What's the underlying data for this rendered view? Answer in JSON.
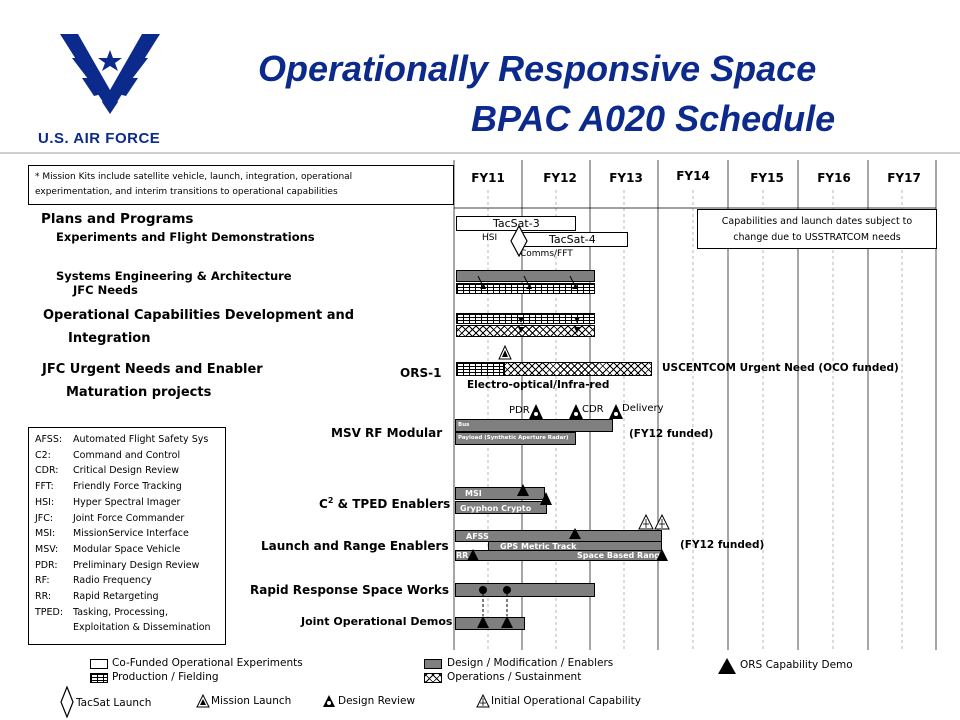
{
  "header": {
    "title_line1": "Operationally Responsive Space",
    "title_line2": "BPAC A020 Schedule",
    "logo_text": "U.S. AIR FORCE"
  },
  "note": {
    "line1": "* Mission Kits include satellite vehicle, launch, integration, operational",
    "line2": "experimentation, and interim transitions to operational capabilities"
  },
  "fiscal_years": [
    "FY11",
    "FY12",
    "FY13",
    "FY14",
    "FY15",
    "FY16",
    "FY17"
  ],
  "cap_note": {
    "line1": "Capabilities and launch dates subject to",
    "line2": "change due to USSTRATCOM needs"
  },
  "sections": {
    "plans": "Plans and Programs",
    "experiments": "Experiments and Flight Demonstrations",
    "sys_eng": "Systems Engineering & Architecture",
    "jfc_needs": "JFC Needs",
    "ocd1": "Operational Capabilities Development and",
    "ocd2": "Integration",
    "urgent1": "JFC Urgent Needs and Enabler",
    "urgent2": "Maturation projects"
  },
  "rows": {
    "ors1": "ORS-1",
    "msv": "MSV RF Modular",
    "c2_main": "C",
    "c2_sup": "2",
    "c2_rest": " & TPED Enablers",
    "launch": "Launch and Range Enablers",
    "rrsw": "Rapid Response Space Works",
    "jod": "Joint Operational Demos"
  },
  "bar_labels": {
    "tacsat3": "TacSat-3",
    "hsi": "HSI",
    "tacsat4": "TacSat-4",
    "comms": "Comms/FFT",
    "eo_ir": "Electro-optical/Infra-red",
    "uscentcom": "USCENTCOM Urgent Need  (OCO funded)",
    "pdr": "PDR",
    "cdr": "CDR",
    "delivery": "Delivery",
    "bus": "Bus",
    "payload": "Payload (Synthetic Aperture Radar)",
    "fy12_funded_1": "(FY12 funded)",
    "msi": "MSI",
    "gryphon": "Gryphon Crypto",
    "afss": "AFSS",
    "gps": "GPS Metric Track",
    "rr": "RR",
    "sbr": "Space Based Range",
    "fy12_funded_2": "(FY12 funded)"
  },
  "glossary": [
    {
      "abbr": "AFSS:",
      "text": "Automated Flight Safety Sys"
    },
    {
      "abbr": "C2:",
      "text": "Command and Control"
    },
    {
      "abbr": "CDR:",
      "text": "Critical Design Review"
    },
    {
      "abbr": "FFT:",
      "text": "Friendly Force Tracking"
    },
    {
      "abbr": "HSI:",
      "text": "Hyper Spectral Imager"
    },
    {
      "abbr": "JFC:",
      "text": "Joint Force Commander"
    },
    {
      "abbr": "MSI:",
      "text": "MissionService Interface"
    },
    {
      "abbr": "MSV:",
      "text": "Modular Space Vehicle"
    },
    {
      "abbr": "PDR:",
      "text": "Preliminary Design Review"
    },
    {
      "abbr": "RF:",
      "text": "Radio Frequency"
    },
    {
      "abbr": "RR:",
      "text": "Rapid Retargeting"
    },
    {
      "abbr": "TPED:",
      "text": "Tasking, Processing,"
    },
    {
      "abbr": "",
      "text": "Exploitation & Dissemination"
    }
  ],
  "legend": {
    "cofunded": "Co-Funded Operational Experiments",
    "production": "Production / Fielding",
    "design": "Design / Modification / Enablers",
    "operations": "Operations / Sustainment",
    "ors_demo": "ORS Capability Demo",
    "tacsat_launch": "TacSat Launch",
    "mission_launch": "Mission Launch",
    "design_review": "Design Review",
    "ioc": "Initial Operational Capability"
  },
  "colors": {
    "title": "#0b2a8c",
    "bar_gray": "#7f7f7f"
  }
}
